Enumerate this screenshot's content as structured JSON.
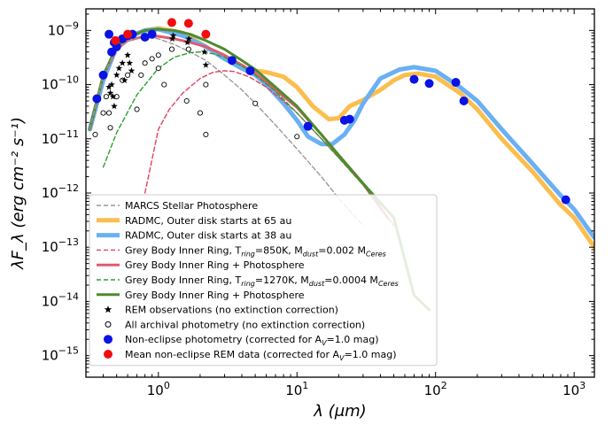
{
  "chart_data": {
    "type": "line",
    "xlabel": "λ (μm)",
    "ylabel": "λF_λ (erg cm⁻² s⁻¹)",
    "xscale": "log",
    "yscale": "log",
    "xlim": [
      0.3,
      1400
    ],
    "ylim": [
      4e-16,
      2.5e-09
    ],
    "x_ticks": [
      {
        "value": 1,
        "base": "10",
        "exp": "0"
      },
      {
        "value": 10,
        "base": "10",
        "exp": "1"
      },
      {
        "value": 100,
        "base": "10",
        "exp": "2"
      },
      {
        "value": 1000,
        "base": "10",
        "exp": "3"
      }
    ],
    "y_ticks": [
      {
        "value": 1e-15,
        "base": "10",
        "exp": "−15"
      },
      {
        "value": 1e-14,
        "base": "10",
        "exp": "−14"
      },
      {
        "value": 1e-13,
        "base": "10",
        "exp": "−13"
      },
      {
        "value": 1e-12,
        "base": "10",
        "exp": "−12"
      },
      {
        "value": 1e-11,
        "base": "10",
        "exp": "−11"
      },
      {
        "value": 1e-10,
        "base": "10",
        "exp": "−10"
      },
      {
        "value": 1e-09,
        "base": "10",
        "exp": "−9"
      }
    ],
    "grid": false,
    "legend_position": "lower-left",
    "colors": {
      "marcs": "#999999",
      "radmc65": "#fbbe4e",
      "radmc38": "#6ab0f2",
      "grey850": "#e0435c",
      "grey850_total": "#e05a70",
      "grey1270": "#2ca02c",
      "grey1270_total": "#4f8a2d",
      "nonEclipse": "#0a12e6",
      "meanREM": "#f20d0d"
    },
    "series": [
      {
        "key": "marcs",
        "name": "MARCS Stellar Photosphere",
        "kind": "line",
        "style": "dashed",
        "width": 1.4,
        "points": [
          [
            0.32,
            1.5e-11
          ],
          [
            0.4,
            1.5e-10
          ],
          [
            0.5,
            4.5e-10
          ],
          [
            0.6,
            6.5e-10
          ],
          [
            0.8,
            7.5e-10
          ],
          [
            1.0,
            7e-10
          ],
          [
            1.3,
            5.5e-10
          ],
          [
            1.7,
            4e-10
          ],
          [
            2.2,
            2.8e-10
          ],
          [
            3,
            1.5e-10
          ],
          [
            4,
            8e-11
          ],
          [
            5,
            4.5e-11
          ],
          [
            7,
            1.8e-11
          ],
          [
            10,
            6.5e-12
          ],
          [
            15,
            2e-12
          ],
          [
            20,
            8e-13
          ],
          [
            30,
            2.5e-13
          ]
        ]
      },
      {
        "key": "radmc65",
        "name": "RADMC, Outer disk starts at 65 au",
        "kind": "line",
        "style": "solid",
        "width": 5,
        "points": [
          [
            0.32,
            1.5e-11
          ],
          [
            0.4,
            1.2e-10
          ],
          [
            0.5,
            5e-10
          ],
          [
            0.6,
            7.5e-10
          ],
          [
            0.8,
            1e-09
          ],
          [
            1.0,
            1.1e-09
          ],
          [
            1.5,
            9e-10
          ],
          [
            2.2,
            5e-10
          ],
          [
            3,
            3e-10
          ],
          [
            4,
            2e-10
          ],
          [
            5,
            1.8e-10
          ],
          [
            6,
            1.7e-10
          ],
          [
            8,
            1.4e-10
          ],
          [
            10,
            9e-11
          ],
          [
            13,
            4e-11
          ],
          [
            17,
            2.3e-11
          ],
          [
            20,
            2.4e-11
          ],
          [
            24,
            4e-11
          ],
          [
            30,
            5.2e-11
          ],
          [
            40,
            8e-11
          ],
          [
            50,
            1.2e-10
          ],
          [
            60,
            1.5e-10
          ],
          [
            75,
            1.6e-10
          ],
          [
            100,
            1.4e-10
          ],
          [
            150,
            7e-11
          ],
          [
            200,
            3.5e-11
          ],
          [
            300,
            1e-11
          ],
          [
            500,
            2.5e-12
          ],
          [
            800,
            6e-13
          ],
          [
            1000,
            3.5e-13
          ],
          [
            1400,
            1e-13
          ]
        ]
      },
      {
        "key": "radmc38",
        "name": "RADMC, Outer disk starts at 38 au",
        "kind": "line",
        "style": "solid",
        "width": 5,
        "points": [
          [
            0.32,
            1.5e-11
          ],
          [
            0.4,
            1.2e-10
          ],
          [
            0.5,
            5e-10
          ],
          [
            0.6,
            7.5e-10
          ],
          [
            0.8,
            1e-09
          ],
          [
            1.0,
            1.05e-09
          ],
          [
            1.5,
            8e-10
          ],
          [
            2.2,
            5e-10
          ],
          [
            3,
            3e-10
          ],
          [
            4,
            2e-10
          ],
          [
            5,
            1.5e-10
          ],
          [
            6,
            1e-10
          ],
          [
            8,
            4.5e-11
          ],
          [
            10,
            2.2e-11
          ],
          [
            12,
            1.1e-11
          ],
          [
            15,
            8e-12
          ],
          [
            18,
            8e-12
          ],
          [
            22,
            1.2e-11
          ],
          [
            26,
            2.2e-11
          ],
          [
            30,
            4.5e-11
          ],
          [
            40,
            1.3e-10
          ],
          [
            55,
            1.9e-10
          ],
          [
            70,
            2.1e-10
          ],
          [
            100,
            1.8e-10
          ],
          [
            150,
            9e-11
          ],
          [
            200,
            5e-11
          ],
          [
            300,
            1.5e-11
          ],
          [
            500,
            3.5e-12
          ],
          [
            800,
            9e-13
          ],
          [
            1000,
            5e-13
          ],
          [
            1400,
            1.5e-13
          ]
        ]
      },
      {
        "key": "grey850",
        "name": "Grey Body Inner Ring, T_ring=850K, M_dust=0.002 M_Ceres",
        "kind": "line",
        "style": "dashed",
        "width": 1.4,
        "points": [
          [
            0.8,
            1e-12
          ],
          [
            1.0,
            1.5e-11
          ],
          [
            1.2,
            3.5e-11
          ],
          [
            1.5,
            7e-11
          ],
          [
            2,
            1.3e-10
          ],
          [
            2.5,
            1.7e-10
          ],
          [
            3,
            1.8e-10
          ],
          [
            3.5,
            1.75e-10
          ],
          [
            4.5,
            1.4e-10
          ],
          [
            6,
            9e-11
          ],
          [
            8,
            5e-11
          ],
          [
            10,
            3e-11
          ],
          [
            15,
            1e-11
          ],
          [
            20,
            4.5e-12
          ],
          [
            30,
            1.4e-12
          ],
          [
            50,
            2.5e-13
          ]
        ]
      },
      {
        "key": "grey850_total",
        "name": "Grey Body Inner Ring + Photosphere",
        "kind": "line",
        "style": "solid",
        "width": 3,
        "points": [
          [
            0.32,
            1.5e-11
          ],
          [
            0.4,
            1.5e-10
          ],
          [
            0.5,
            4.5e-10
          ],
          [
            0.6,
            6.5e-10
          ],
          [
            0.8,
            7.8e-10
          ],
          [
            1.0,
            7.8e-10
          ],
          [
            1.3,
            7e-10
          ],
          [
            1.7,
            6e-10
          ],
          [
            2.2,
            5e-10
          ],
          [
            3,
            3.5e-10
          ],
          [
            4,
            2.3e-10
          ],
          [
            5,
            1.6e-10
          ],
          [
            7,
            8e-11
          ],
          [
            10,
            3.8e-11
          ],
          [
            15,
            1.2e-11
          ],
          [
            20,
            5e-12
          ],
          [
            30,
            1.5e-12
          ],
          [
            45,
            3.5e-13
          ]
        ]
      },
      {
        "key": "grey1270",
        "name": "Grey Body Inner Ring, T_ring=1270K, M_dust=0.0004 M_Ceres",
        "kind": "line",
        "style": "dashed",
        "width": 1.4,
        "points": [
          [
            0.4,
            3e-12
          ],
          [
            0.5,
            1.3e-11
          ],
          [
            0.7,
            6.5e-11
          ],
          [
            1.0,
            2e-10
          ],
          [
            1.3,
            3.2e-10
          ],
          [
            1.7,
            3.9e-10
          ],
          [
            2.0,
            4e-10
          ],
          [
            2.5,
            3.7e-10
          ],
          [
            3,
            3.2e-10
          ],
          [
            4,
            2.2e-10
          ],
          [
            5,
            1.5e-10
          ],
          [
            7,
            7.5e-11
          ],
          [
            10,
            3e-11
          ],
          [
            15,
            1e-11
          ],
          [
            20,
            4.5e-12
          ],
          [
            30,
            1.4e-12
          ],
          [
            40,
            6e-13
          ]
        ]
      },
      {
        "key": "grey1270_total",
        "name": "Grey Body Inner Ring + Photosphere",
        "kind": "line",
        "style": "solid",
        "width": 3,
        "points": [
          [
            0.32,
            1.5e-11
          ],
          [
            0.4,
            1.5e-10
          ],
          [
            0.5,
            5e-10
          ],
          [
            0.6,
            7.5e-10
          ],
          [
            0.8,
            1e-09
          ],
          [
            1.0,
            1.05e-09
          ],
          [
            1.3,
            1e-09
          ],
          [
            1.7,
            8.5e-10
          ],
          [
            2.2,
            6.5e-10
          ],
          [
            3,
            4.5e-10
          ],
          [
            4,
            2.8e-10
          ],
          [
            5,
            1.9e-10
          ],
          [
            7,
            9e-11
          ],
          [
            10,
            4e-11
          ],
          [
            15,
            1.2e-11
          ],
          [
            20,
            5e-12
          ],
          [
            30,
            1.5e-12
          ],
          [
            50,
            3.5e-13
          ],
          [
            70,
            1.3e-14
          ],
          [
            90,
            7e-15
          ]
        ]
      },
      {
        "key": "rem",
        "name": "REM observations (no extinction correction)",
        "kind": "marker",
        "marker": "star",
        "points": [
          [
            0.44,
            9e-11
          ],
          [
            0.45,
            7e-11
          ],
          [
            0.46,
            1e-10
          ],
          [
            0.47,
            6e-11
          ],
          [
            0.48,
            4e-11
          ],
          [
            0.5,
            1.5e-10
          ],
          [
            0.52,
            2e-10
          ],
          [
            0.55,
            2.5e-10
          ],
          [
            0.57,
            1.2e-10
          ],
          [
            0.6,
            3.5e-10
          ],
          [
            0.62,
            2.5e-10
          ],
          [
            0.64,
            1.8e-10
          ],
          [
            1.26,
            7e-10
          ],
          [
            1.28,
            8e-10
          ],
          [
            1.62,
            6e-10
          ],
          [
            1.66,
            7e-10
          ],
          [
            2.15,
            4e-10
          ],
          [
            2.2,
            2.3e-10
          ]
        ]
      },
      {
        "key": "archival",
        "name": "All archival photometry (no extinction correction)",
        "kind": "marker",
        "marker": "circle-open",
        "points": [
          [
            0.35,
            1.2e-11
          ],
          [
            0.4,
            3e-11
          ],
          [
            0.42,
            6e-11
          ],
          [
            0.44,
            3e-11
          ],
          [
            0.45,
            1.6e-11
          ],
          [
            0.5,
            6e-11
          ],
          [
            0.55,
            1.2e-10
          ],
          [
            0.6,
            1.5e-10
          ],
          [
            0.7,
            3.5e-11
          ],
          [
            0.75,
            1.5e-10
          ],
          [
            0.8,
            2.5e-10
          ],
          [
            0.9,
            3e-10
          ],
          [
            1.0,
            3.5e-10
          ],
          [
            1.0,
            2e-10
          ],
          [
            1.1,
            1e-10
          ],
          [
            1.25,
            4.5e-10
          ],
          [
            1.6,
            5e-11
          ],
          [
            1.65,
            4.5e-10
          ],
          [
            2.0,
            3e-11
          ],
          [
            2.2,
            1.2e-11
          ],
          [
            2.2,
            1e-10
          ],
          [
            5,
            4.5e-11
          ],
          [
            10,
            1.1e-11
          ]
        ]
      },
      {
        "key": "nonEclipse",
        "name": "Non-eclipse photometry (corrected for A_V=1.0 mag)",
        "kind": "marker",
        "marker": "circle",
        "points": [
          [
            0.36,
            5.5e-11
          ],
          [
            0.4,
            1.5e-10
          ],
          [
            0.44,
            8.5e-10
          ],
          [
            0.46,
            4e-10
          ],
          [
            0.48,
            6e-10
          ],
          [
            0.5,
            5e-10
          ],
          [
            0.55,
            7e-10
          ],
          [
            0.6,
            8e-10
          ],
          [
            0.65,
            8.5e-10
          ],
          [
            0.8,
            7.5e-10
          ],
          [
            0.9,
            8.5e-10
          ],
          [
            3.4,
            2.8e-10
          ],
          [
            4.6,
            1.8e-10
          ],
          [
            12,
            1.7e-11
          ],
          [
            22,
            2.2e-11
          ],
          [
            24,
            2.3e-11
          ],
          [
            70,
            1.25e-10
          ],
          [
            90,
            1.05e-10
          ],
          [
            140,
            1.1e-10
          ],
          [
            160,
            5e-11
          ],
          [
            870,
            7.5e-13
          ]
        ]
      },
      {
        "key": "meanREM",
        "name": "Mean non-eclipse REM data (corrected for A_V=1.0 mag)",
        "kind": "marker",
        "marker": "circle",
        "points": [
          [
            0.49,
            6.5e-10
          ],
          [
            0.6,
            8.5e-10
          ],
          [
            1.25,
            1.4e-09
          ],
          [
            1.65,
            1.35e-09
          ],
          [
            2.2,
            8.5e-10
          ]
        ]
      }
    ]
  },
  "legend": {
    "items": [
      {
        "key": "marcs",
        "sym": "dash",
        "parts": [
          {
            "t": "MARCS Stellar Photosphere"
          }
        ]
      },
      {
        "key": "radmc65",
        "sym": "thick",
        "parts": [
          {
            "t": "RADMC, Outer disk starts at 65 au"
          }
        ]
      },
      {
        "key": "radmc38",
        "sym": "thick",
        "parts": [
          {
            "t": "RADMC, Outer disk starts at 38 au"
          }
        ]
      },
      {
        "key": "grey850",
        "sym": "dash",
        "parts": [
          {
            "t": "Grey Body Inner Ring, T"
          },
          {
            "t": "ring",
            "sub": true
          },
          {
            "t": "=850K, M"
          },
          {
            "t": "dust",
            "sub": true
          },
          {
            "t": "=0.002 M"
          },
          {
            "t": "Ceres",
            "sub": true
          }
        ]
      },
      {
        "key": "grey850_total",
        "sym": "line",
        "parts": [
          {
            "t": "Grey Body Inner Ring + Photosphere"
          }
        ]
      },
      {
        "key": "grey1270",
        "sym": "dash",
        "parts": [
          {
            "t": "Grey Body Inner Ring, T"
          },
          {
            "t": "ring",
            "sub": true
          },
          {
            "t": "=1270K, M"
          },
          {
            "t": "dust",
            "sub": true
          },
          {
            "t": "=0.0004 M"
          },
          {
            "t": "Ceres",
            "sub": true
          }
        ]
      },
      {
        "key": "grey1270_total",
        "sym": "line",
        "parts": [
          {
            "t": "Grey Body Inner Ring + Photosphere"
          }
        ]
      },
      {
        "key": "rem",
        "sym": "star",
        "parts": [
          {
            "t": "REM observations (no extinction correction)"
          }
        ]
      },
      {
        "key": "archival",
        "sym": "circle-open",
        "parts": [
          {
            "t": "All archival photometry (no extinction correction)"
          }
        ]
      },
      {
        "key": "nonEclipse",
        "sym": "circle",
        "parts": [
          {
            "t": "Non-eclipse photometry (corrected for A"
          },
          {
            "t": "V",
            "sub": true
          },
          {
            "t": "=1.0 mag)"
          }
        ]
      },
      {
        "key": "meanREM",
        "sym": "circle",
        "parts": [
          {
            "t": "Mean non-eclipse REM data (corrected for A"
          },
          {
            "t": "V",
            "sub": true
          },
          {
            "t": "=1.0 mag)"
          }
        ]
      }
    ]
  }
}
